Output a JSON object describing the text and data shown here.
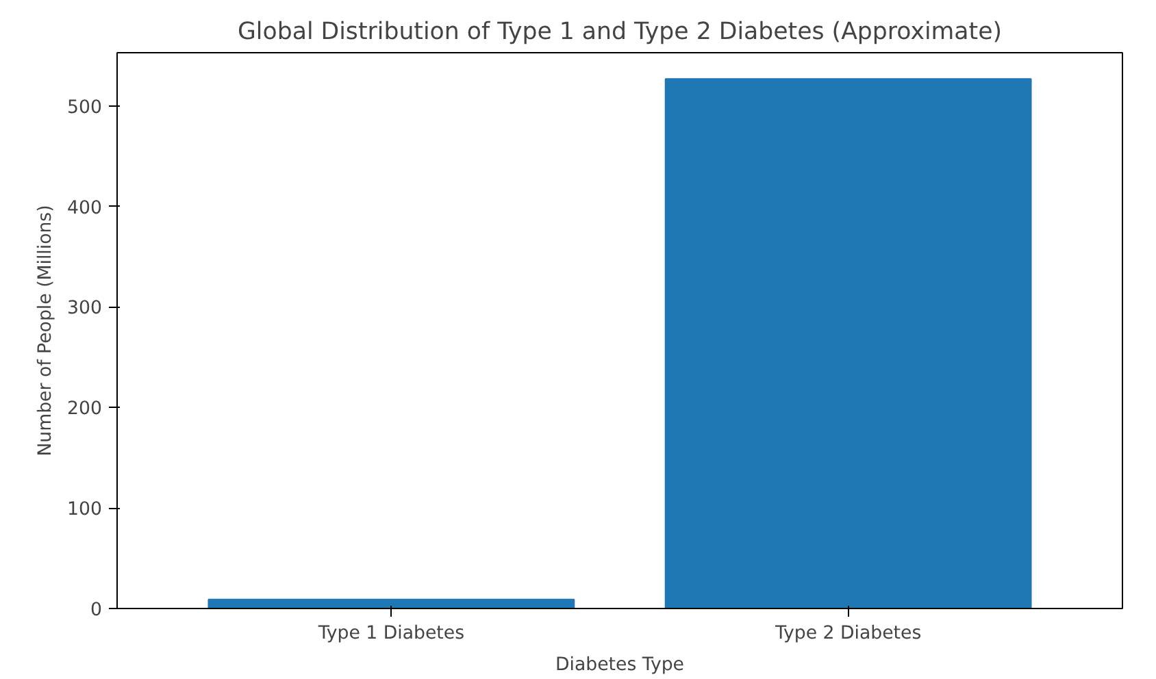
{
  "chart_data": {
    "type": "bar",
    "title": "Global Distribution of Type 1 and Type 2 Diabetes (Approximate)",
    "xlabel": "Diabetes Type",
    "ylabel": "Number of People (Millions)",
    "categories": [
      "Type 1 Diabetes",
      "Type 2 Diabetes"
    ],
    "values": [
      9,
      527
    ],
    "color": "#1f77b4",
    "ylim": [
      0,
      553
    ],
    "yticks": [
      0,
      100,
      200,
      300,
      400,
      500
    ],
    "grid": false
  }
}
